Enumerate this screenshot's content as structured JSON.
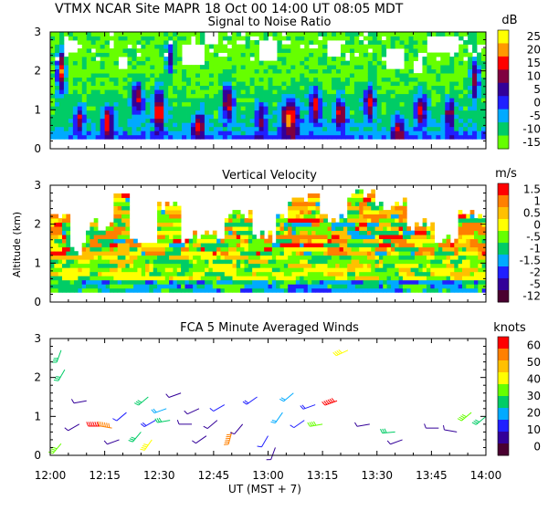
{
  "header": {
    "title_line": "VTMX   NCAR Site   MAPR 18 Oct 00   14:00 UT   08:05   MDT"
  },
  "common": {
    "y_label": "Altitude (km)",
    "x_label": "UT   (MST + 7)",
    "x_ticks": [
      "12:00",
      "12:15",
      "12:30",
      "12:45",
      "13:00",
      "13:15",
      "13:30",
      "13:45",
      "14:00"
    ],
    "y_ticks": [
      "0",
      "1",
      "2",
      "3"
    ],
    "x_range_minutes": [
      0,
      120
    ],
    "y_range_km": [
      0,
      3
    ]
  },
  "chart_data": [
    {
      "type": "heatmap",
      "title": "Signal to Noise Ratio",
      "units": "dB",
      "xlabel": "UT (MST + 7)",
      "ylabel": "Altitude (km)",
      "x_range": [
        0,
        120
      ],
      "y_range": [
        0,
        3
      ],
      "colorbar_labels": [
        "25",
        "20",
        "15",
        "10",
        "5",
        "0",
        "-5",
        "-10",
        "-15"
      ],
      "colorbar_colors": [
        "#ffff00",
        "#ff9900",
        "#ff0000",
        "#800040",
        "#330099",
        "#2020ff",
        "#00aaff",
        "#00cc66",
        "#66ff00"
      ],
      "palette": [
        "#66ff00",
        "#00cc66",
        "#00aaff",
        "#2020ff",
        "#330099",
        "#800040",
        "#ff0000",
        "#ff9900",
        "#ffff00"
      ],
      "profile": [
        [
          0.25,
          3
        ],
        [
          0.5,
          1.5
        ],
        [
          0.8,
          1
        ],
        [
          1.2,
          0.8
        ],
        [
          1.8,
          0.3
        ],
        [
          2.6,
          0.2
        ],
        [
          3.0,
          0.2
        ]
      ],
      "hotspots": [
        {
          "t": 3,
          "z": 2.0,
          "v": 6,
          "w": 1.5,
          "h": 0.7
        },
        {
          "t": 8,
          "z": 0.8,
          "v": 5,
          "w": 1.5,
          "h": 0.4
        },
        {
          "t": 16,
          "z": 0.7,
          "v": 5,
          "w": 2,
          "h": 0.5
        },
        {
          "t": 24,
          "z": 1.3,
          "v": 5,
          "w": 2,
          "h": 0.5
        },
        {
          "t": 30,
          "z": 1.0,
          "v": 6,
          "w": 2,
          "h": 0.6
        },
        {
          "t": 33,
          "z": 2.3,
          "v": 4,
          "w": 1.5,
          "h": 0.5
        },
        {
          "t": 41,
          "z": 0.6,
          "v": 5,
          "w": 2,
          "h": 0.4
        },
        {
          "t": 49,
          "z": 1.2,
          "v": 5,
          "w": 2,
          "h": 0.6
        },
        {
          "t": 58,
          "z": 0.8,
          "v": 4,
          "w": 2,
          "h": 0.5
        },
        {
          "t": 66,
          "z": 0.8,
          "v": 6,
          "w": 3,
          "h": 0.6
        },
        {
          "t": 73,
          "z": 1.1,
          "v": 5,
          "w": 2,
          "h": 0.6
        },
        {
          "t": 80,
          "z": 0.9,
          "v": 5,
          "w": 2,
          "h": 0.5
        },
        {
          "t": 88,
          "z": 1.2,
          "v": 5,
          "w": 2,
          "h": 0.5
        },
        {
          "t": 96,
          "z": 0.5,
          "v": 4,
          "w": 2,
          "h": 0.4
        },
        {
          "t": 102,
          "z": 1.0,
          "v": 5,
          "w": 2,
          "h": 0.5
        },
        {
          "t": 110,
          "z": 0.9,
          "v": 4,
          "w": 2,
          "h": 0.5
        },
        {
          "t": 117,
          "z": 1.8,
          "v": 5,
          "w": 1.5,
          "h": 0.7
        }
      ],
      "gaps": [
        {
          "t": 39,
          "z": 2.4,
          "w": 6,
          "h": 0.5
        },
        {
          "t": 44,
          "z": 2.8,
          "w": 4,
          "h": 0.3
        },
        {
          "t": 60,
          "z": 2.5,
          "w": 6,
          "h": 0.5
        },
        {
          "t": 78,
          "z": 2.6,
          "w": 4,
          "h": 0.4
        },
        {
          "t": 95,
          "z": 2.3,
          "w": 5,
          "h": 0.5
        },
        {
          "t": 101,
          "z": 2.1,
          "w": 3,
          "h": 0.4
        },
        {
          "t": 108,
          "z": 2.7,
          "w": 8,
          "h": 0.4
        },
        {
          "t": 6,
          "z": 2.6,
          "w": 4,
          "h": 0.3
        },
        {
          "t": 20,
          "z": 2.2,
          "w": 2,
          "h": 0.4
        }
      ]
    },
    {
      "type": "heatmap",
      "title": "Vertical Velocity",
      "units": "m/s",
      "xlabel": "UT (MST + 7)",
      "ylabel": "Altitude (km)",
      "x_range": [
        0,
        120
      ],
      "y_range": [
        0,
        3
      ],
      "colorbar_labels": [
        "1.5",
        "1",
        "0.5",
        "0",
        "-.5",
        "-1",
        "-1.5",
        "-2",
        "-5",
        "-12"
      ],
      "colorbar_colors": [
        "#ff0000",
        "#ff8000",
        "#ffc000",
        "#ffff00",
        "#66ff00",
        "#00cc66",
        "#00aaff",
        "#2020ff",
        "#330099",
        "#4a0030"
      ],
      "palette": [
        "#4a0030",
        "#330099",
        "#2020ff",
        "#00aaff",
        "#00cc66",
        "#66ff00",
        "#ffff00",
        "#ffc000",
        "#ff8000",
        "#ff0000"
      ],
      "valid_top_segments": [
        {
          "t0": 0,
          "t1": 5,
          "top": 2.3
        },
        {
          "t0": 5,
          "t1": 10,
          "top": 1.4
        },
        {
          "t0": 10,
          "t1": 17,
          "top": 2.0
        },
        {
          "t0": 17,
          "t1": 22,
          "top": 2.9
        },
        {
          "t0": 22,
          "t1": 30,
          "top": 1.6
        },
        {
          "t0": 30,
          "t1": 36,
          "top": 2.5
        },
        {
          "t0": 36,
          "t1": 48,
          "top": 1.7
        },
        {
          "t0": 48,
          "t1": 56,
          "top": 2.3
        },
        {
          "t0": 56,
          "t1": 62,
          "top": 1.7
        },
        {
          "t0": 62,
          "t1": 66,
          "top": 2.2
        },
        {
          "t0": 66,
          "t1": 74,
          "top": 2.7
        },
        {
          "t0": 74,
          "t1": 82,
          "top": 2.2
        },
        {
          "t0": 82,
          "t1": 90,
          "top": 2.8
        },
        {
          "t0": 90,
          "t1": 98,
          "top": 2.5
        },
        {
          "t0": 98,
          "t1": 106,
          "top": 2.0
        },
        {
          "t0": 106,
          "t1": 112,
          "top": 1.6
        },
        {
          "t0": 112,
          "t1": 120,
          "top": 2.3
        }
      ],
      "seed": 7
    },
    {
      "type": "wind_barbs",
      "title": "FCA 5 Minute Averaged Winds",
      "units": "knots",
      "xlabel": "UT (MST + 7)",
      "ylabel": "Altitude (km)",
      "x_range": [
        0,
        120
      ],
      "y_range": [
        0,
        3
      ],
      "colorbar_labels": [
        "60",
        "50",
        "40",
        "30",
        "20",
        "10",
        "0"
      ],
      "colorbar_colors": [
        "#ff0000",
        "#ff8000",
        "#ffc000",
        "#ffff00",
        "#66ff00",
        "#00cc66",
        "#00aaff",
        "#2020ff",
        "#330099",
        "#4a0030"
      ],
      "max_speed": 60,
      "barbs": [
        {
          "t": 3,
          "z": 2.7,
          "dir": 200,
          "spd": 25
        },
        {
          "t": 4,
          "z": 2.2,
          "dir": 210,
          "spd": 30
        },
        {
          "t": 3,
          "z": 0.3,
          "dir": 220,
          "spd": 35
        },
        {
          "t": 8,
          "z": 0.8,
          "dir": 240,
          "spd": 10
        },
        {
          "t": 10,
          "z": 1.4,
          "dir": 260,
          "spd": 8
        },
        {
          "t": 14,
          "z": 0.75,
          "dir": 270,
          "spd": 60
        },
        {
          "t": 17,
          "z": 0.7,
          "dir": 280,
          "spd": 55
        },
        {
          "t": 19,
          "z": 0.4,
          "dir": 250,
          "spd": 10
        },
        {
          "t": 21,
          "z": 1.1,
          "dir": 230,
          "spd": 12
        },
        {
          "t": 25,
          "z": 0.6,
          "dir": 220,
          "spd": 25
        },
        {
          "t": 28,
          "z": 0.4,
          "dir": 215,
          "spd": 40
        },
        {
          "t": 27,
          "z": 1.5,
          "dir": 230,
          "spd": 25
        },
        {
          "t": 29,
          "z": 0.9,
          "dir": 240,
          "spd": 15
        },
        {
          "t": 32,
          "z": 1.2,
          "dir": 250,
          "spd": 20
        },
        {
          "t": 33,
          "z": 0.9,
          "dir": 260,
          "spd": 30
        },
        {
          "t": 36,
          "z": 1.6,
          "dir": 250,
          "spd": 10
        },
        {
          "t": 39,
          "z": 0.8,
          "dir": 270,
          "spd": 8
        },
        {
          "t": 41,
          "z": 1.2,
          "dir": 245,
          "spd": 10
        },
        {
          "t": 43,
          "z": 0.5,
          "dir": 235,
          "spd": 8
        },
        {
          "t": 46,
          "z": 0.9,
          "dir": 230,
          "spd": 10
        },
        {
          "t": 48,
          "z": 1.3,
          "dir": 240,
          "spd": 12
        },
        {
          "t": 50,
          "z": 0.6,
          "dir": 195,
          "spd": 55
        },
        {
          "t": 53,
          "z": 0.8,
          "dir": 220,
          "spd": 8
        },
        {
          "t": 57,
          "z": 1.5,
          "dir": 235,
          "spd": 15
        },
        {
          "t": 60,
          "z": 0.5,
          "dir": 210,
          "spd": 12
        },
        {
          "t": 62,
          "z": 0.2,
          "dir": 200,
          "spd": 8
        },
        {
          "t": 64,
          "z": 1.1,
          "dir": 215,
          "spd": 20
        },
        {
          "t": 67,
          "z": 1.6,
          "dir": 230,
          "spd": 22
        },
        {
          "t": 70,
          "z": 0.9,
          "dir": 235,
          "spd": 12
        },
        {
          "t": 73,
          "z": 1.3,
          "dir": 250,
          "spd": 15
        },
        {
          "t": 75,
          "z": 0.8,
          "dir": 260,
          "spd": 35
        },
        {
          "t": 79,
          "z": 1.4,
          "dir": 250,
          "spd": 60
        },
        {
          "t": 82,
          "z": 2.7,
          "dir": 245,
          "spd": 40
        },
        {
          "t": 88,
          "z": 0.8,
          "dir": 260,
          "spd": 8
        },
        {
          "t": 95,
          "z": 0.6,
          "dir": 265,
          "spd": 30
        },
        {
          "t": 97,
          "z": 0.4,
          "dir": 250,
          "spd": 5
        },
        {
          "t": 107,
          "z": 0.7,
          "dir": 270,
          "spd": 10
        },
        {
          "t": 112,
          "z": 0.6,
          "dir": 280,
          "spd": 6
        },
        {
          "t": 116,
          "z": 1.1,
          "dir": 230,
          "spd": 35
        },
        {
          "t": 120,
          "z": 1.0,
          "dir": 230,
          "spd": 25
        }
      ]
    }
  ]
}
